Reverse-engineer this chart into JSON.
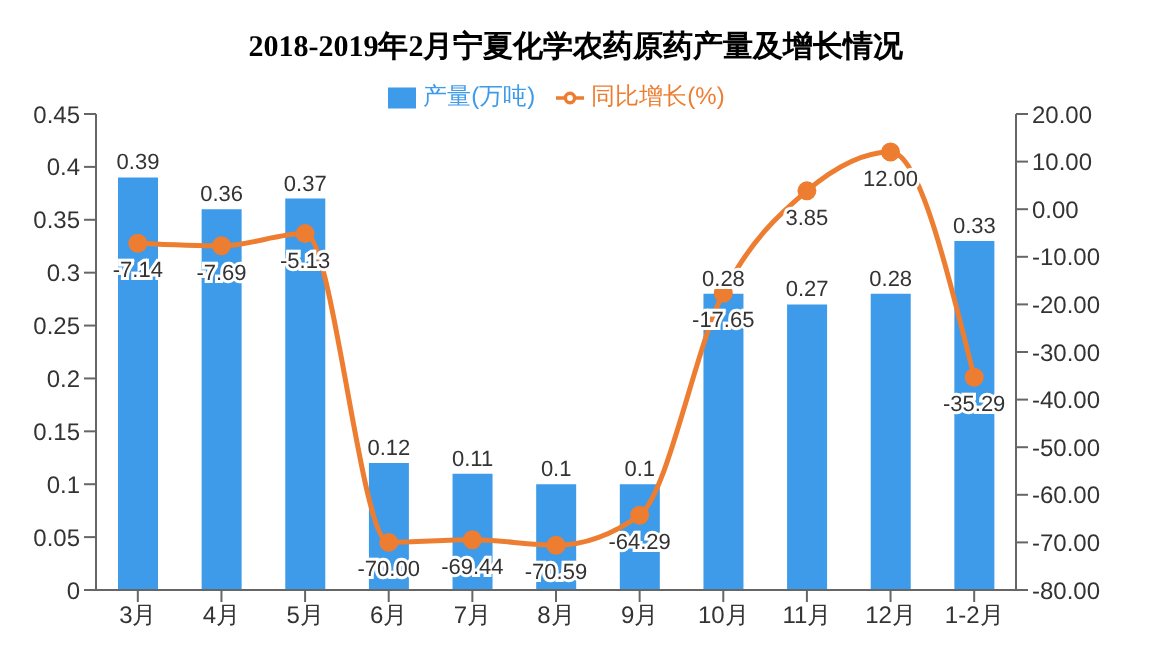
{
  "chart_data": {
    "type": "bar",
    "title": "2018-2019年2月宁夏化学农药原药产量及增长情况",
    "categories": [
      "3月",
      "4月",
      "5月",
      "6月",
      "7月",
      "8月",
      "9月",
      "10月",
      "11月",
      "12月",
      "1-2月"
    ],
    "series": [
      {
        "name": "产量(万吨)",
        "color": "#3d9be9",
        "values": [
          0.39,
          0.36,
          0.37,
          0.12,
          0.11,
          0.1,
          0.1,
          0.28,
          0.27,
          0.28,
          0.33
        ],
        "value_labels": [
          "0.39",
          "0.36",
          "0.37",
          "0.12",
          "0.11",
          "0.1",
          "0.1",
          "0.28",
          "0.27",
          "0.28",
          "0.33"
        ]
      },
      {
        "name": "同比增长(%)",
        "type": "line",
        "axis": "y2",
        "color": "#ed7d31",
        "values": [
          -7.14,
          -7.69,
          -5.13,
          -70.0,
          -69.44,
          -70.59,
          -64.29,
          -17.65,
          3.85,
          12.0,
          -35.29
        ],
        "value_labels": [
          "-7.14",
          "-7.69",
          "-5.13",
          "-70.00",
          "-69.44",
          "-70.59",
          "-64.29",
          "-17.65",
          "3.85",
          "12.00",
          "-35.29"
        ]
      }
    ],
    "ylim": [
      0,
      0.45
    ],
    "yticks": [
      0,
      0.05,
      0.1,
      0.15,
      0.2,
      0.25,
      0.3,
      0.35,
      0.4,
      0.45
    ],
    "y2lim": [
      -80,
      20
    ],
    "y2ticks": [
      {
        "value": 20,
        "label": "20.00"
      },
      {
        "value": 10,
        "label": "10.00"
      },
      {
        "value": 0,
        "label": "0.00"
      },
      {
        "value": -10,
        "label": "-10.00"
      },
      {
        "value": -20,
        "label": "-20.00"
      },
      {
        "value": -30,
        "label": "-30.00"
      },
      {
        "value": -40,
        "label": "-40.00"
      },
      {
        "value": -50,
        "label": "-50.00"
      },
      {
        "value": -60,
        "label": "-60.00"
      },
      {
        "value": -70,
        "label": "-70.00"
      },
      {
        "value": -80,
        "label": "-80.00"
      }
    ],
    "legend": "top",
    "marker": "circle",
    "grid": false
  }
}
